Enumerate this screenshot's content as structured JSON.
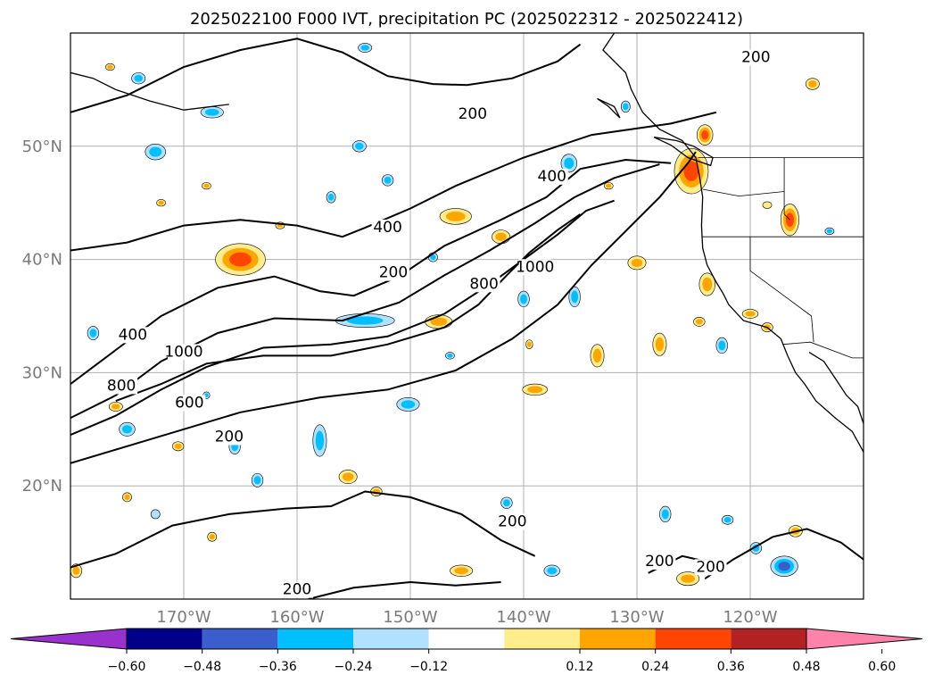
{
  "title": "2025022100 F000 IVT, precipitation PC (2025022312 - 2025022412)",
  "map": {
    "lon_range": [
      -180,
      -110
    ],
    "lat_range": [
      10,
      60
    ],
    "lat_ticks": [
      {
        "value": 20,
        "label": "20°N"
      },
      {
        "value": 30,
        "label": "30°N"
      },
      {
        "value": 40,
        "label": "40°N"
      },
      {
        "value": 50,
        "label": "50°N"
      }
    ],
    "lon_ticks": [
      {
        "value": -170,
        "label": "170°W"
      },
      {
        "value": -160,
        "label": "160°W"
      },
      {
        "value": -150,
        "label": "150°W"
      },
      {
        "value": -140,
        "label": "140°W"
      },
      {
        "value": -130,
        "label": "130°W"
      },
      {
        "value": -120,
        "label": "120°W"
      }
    ],
    "grid": true,
    "land_color": "#ffffff",
    "gridline_color": "#b0b0b0"
  },
  "chart_data": {
    "type": "heatmap",
    "title": "2025022100 F000 IVT, precipitation PC (2025022312 - 2025022412)",
    "ivt_contour_levels": [
      200,
      400,
      600,
      800,
      1000
    ],
    "ivt_contour_labels": [
      {
        "text": "200",
        "lon": -144.5,
        "lat": 52.5
      },
      {
        "text": "200",
        "lon": -119.5,
        "lat": 57.5
      },
      {
        "text": "400",
        "lon": -137.5,
        "lat": 47.0
      },
      {
        "text": "400",
        "lon": -152.0,
        "lat": 42.5
      },
      {
        "text": "200",
        "lon": -151.5,
        "lat": 38.5
      },
      {
        "text": "800",
        "lon": -143.5,
        "lat": 37.5
      },
      {
        "text": "1000",
        "lon": -139.0,
        "lat": 39.0
      },
      {
        "text": "400",
        "lon": -174.5,
        "lat": 33.0
      },
      {
        "text": "1000",
        "lon": -170.0,
        "lat": 31.5
      },
      {
        "text": "800",
        "lon": -175.5,
        "lat": 28.5
      },
      {
        "text": "600",
        "lon": -169.5,
        "lat": 27.0
      },
      {
        "text": "200",
        "lon": -166.0,
        "lat": 24.0
      },
      {
        "text": "200",
        "lon": -141.0,
        "lat": 16.5
      },
      {
        "text": "200",
        "lon": -128.0,
        "lat": 13.0
      },
      {
        "text": "200",
        "lon": -123.5,
        "lat": 12.5
      },
      {
        "text": "200",
        "lon": -160.0,
        "lat": 10.5
      }
    ],
    "colorbar": {
      "ticks": [
        "−0.60",
        "−0.48",
        "−0.36",
        "−0.24",
        "−0.12",
        "0.12",
        "0.24",
        "0.36",
        "0.48",
        "0.60"
      ],
      "boundaries": [
        -0.72,
        -0.6,
        -0.48,
        -0.36,
        -0.24,
        -0.12,
        0.12,
        0.24,
        0.36,
        0.48,
        0.6,
        0.72
      ],
      "colors": [
        "#9932cc",
        "#00008b",
        "#3a5fcd",
        "#00bfff",
        "#b0e2ff",
        "#ffffff",
        "#ffec8b",
        "#ffa500",
        "#ff4500",
        "#b22222",
        "#ff82ab"
      ],
      "extend": "both"
    },
    "pc_blobs": [
      {
        "lon": -165.0,
        "lat": 40.0,
        "rx": 2.2,
        "ry": 1.4,
        "v": 0.45
      },
      {
        "lon": -154.0,
        "lat": 34.6,
        "rx": 2.6,
        "ry": 0.6,
        "v": -0.4
      },
      {
        "lon": -125.2,
        "lat": 47.8,
        "rx": 1.5,
        "ry": 2.0,
        "v": 0.5
      },
      {
        "lon": -124.0,
        "lat": 51.0,
        "rx": 0.7,
        "ry": 0.9,
        "v": 0.42
      },
      {
        "lon": -146.0,
        "lat": 43.8,
        "rx": 1.4,
        "ry": 0.7,
        "v": 0.38
      },
      {
        "lon": -142.0,
        "lat": 42.0,
        "rx": 0.8,
        "ry": 0.6,
        "v": 0.36
      },
      {
        "lon": -147.5,
        "lat": 34.5,
        "rx": 1.2,
        "ry": 0.6,
        "v": 0.38
      },
      {
        "lon": -116.5,
        "lat": 43.5,
        "rx": 0.8,
        "ry": 1.4,
        "v": 0.42
      },
      {
        "lon": -130.0,
        "lat": 39.7,
        "rx": 0.8,
        "ry": 0.6,
        "v": 0.38
      },
      {
        "lon": -123.8,
        "lat": 37.8,
        "rx": 0.7,
        "ry": 1.0,
        "v": 0.38
      },
      {
        "lon": -128.0,
        "lat": 32.5,
        "rx": 0.6,
        "ry": 1.0,
        "v": 0.4
      },
      {
        "lon": -133.5,
        "lat": 31.5,
        "rx": 0.6,
        "ry": 1.0,
        "v": 0.38
      },
      {
        "lon": -139.0,
        "lat": 28.5,
        "rx": 1.1,
        "ry": 0.5,
        "v": 0.36
      },
      {
        "lon": -172.5,
        "lat": 49.5,
        "rx": 0.9,
        "ry": 0.7,
        "v": -0.4
      },
      {
        "lon": -165.5,
        "lat": 23.5,
        "rx": 0.5,
        "ry": 0.7,
        "v": -0.38
      },
      {
        "lon": -168.0,
        "lat": 46.5,
        "rx": 0.4,
        "ry": 0.3,
        "v": 0.3
      },
      {
        "lon": -172.0,
        "lat": 45.0,
        "rx": 0.4,
        "ry": 0.3,
        "v": 0.3
      },
      {
        "lon": -157.0,
        "lat": 45.5,
        "rx": 0.4,
        "ry": 0.5,
        "v": -0.4
      },
      {
        "lon": -174.0,
        "lat": 56.0,
        "rx": 0.6,
        "ry": 0.5,
        "v": -0.36
      },
      {
        "lon": -167.5,
        "lat": 53.0,
        "rx": 1.0,
        "ry": 0.5,
        "v": -0.36
      },
      {
        "lon": -136.0,
        "lat": 48.5,
        "rx": 0.7,
        "ry": 0.8,
        "v": -0.36
      },
      {
        "lon": -131.0,
        "lat": 53.5,
        "rx": 0.4,
        "ry": 0.5,
        "v": -0.3
      },
      {
        "lon": -140.0,
        "lat": 36.5,
        "rx": 0.5,
        "ry": 0.7,
        "v": -0.36
      },
      {
        "lon": -135.5,
        "lat": 36.7,
        "rx": 0.5,
        "ry": 0.9,
        "v": -0.38
      },
      {
        "lon": -152.0,
        "lat": 47.0,
        "rx": 0.5,
        "ry": 0.5,
        "v": -0.36
      },
      {
        "lon": -150.2,
        "lat": 27.2,
        "rx": 1.0,
        "ry": 0.6,
        "v": -0.38
      },
      {
        "lon": -148.0,
        "lat": 40.2,
        "rx": 0.4,
        "ry": 0.4,
        "v": -0.32
      },
      {
        "lon": -158.0,
        "lat": 24.0,
        "rx": 0.6,
        "ry": 1.4,
        "v": -0.4
      },
      {
        "lon": -175.0,
        "lat": 25.0,
        "rx": 0.7,
        "ry": 0.6,
        "v": -0.4
      },
      {
        "lon": -174.5,
        "lat": 29.0,
        "rx": 0.4,
        "ry": 0.4,
        "v": 0.3
      },
      {
        "lon": -155.5,
        "lat": 20.8,
        "rx": 0.8,
        "ry": 0.6,
        "v": 0.4
      },
      {
        "lon": -153.0,
        "lat": 19.5,
        "rx": 0.5,
        "ry": 0.4,
        "v": 0.36
      },
      {
        "lon": -141.5,
        "lat": 18.5,
        "rx": 0.5,
        "ry": 0.5,
        "v": -0.38
      },
      {
        "lon": -137.5,
        "lat": 12.5,
        "rx": 0.7,
        "ry": 0.5,
        "v": -0.36
      },
      {
        "lon": -145.5,
        "lat": 12.5,
        "rx": 1.0,
        "ry": 0.5,
        "v": 0.32
      },
      {
        "lon": -117.0,
        "lat": 12.9,
        "rx": 1.2,
        "ry": 0.9,
        "v": -0.45
      },
      {
        "lon": -125.5,
        "lat": 11.8,
        "rx": 1.0,
        "ry": 0.6,
        "v": 0.36
      },
      {
        "lon": -120.0,
        "lat": 35.2,
        "rx": 0.7,
        "ry": 0.4,
        "v": 0.36
      },
      {
        "lon": -122.5,
        "lat": 32.4,
        "rx": 0.5,
        "ry": 0.7,
        "v": -0.36
      },
      {
        "lon": -127.5,
        "lat": 17.5,
        "rx": 0.5,
        "ry": 0.7,
        "v": -0.38
      },
      {
        "lon": -116.0,
        "lat": 16.0,
        "rx": 0.6,
        "ry": 0.5,
        "v": 0.38
      },
      {
        "lon": -179.5,
        "lat": 12.5,
        "rx": 0.5,
        "ry": 0.6,
        "v": 0.38
      },
      {
        "lon": -178.0,
        "lat": 33.5,
        "rx": 0.5,
        "ry": 0.6,
        "v": -0.3
      },
      {
        "lon": -163.5,
        "lat": 20.5,
        "rx": 0.5,
        "ry": 0.6,
        "v": -0.3
      },
      {
        "lon": -176.0,
        "lat": 27.0,
        "rx": 0.6,
        "ry": 0.4,
        "v": 0.34
      },
      {
        "lon": -139.5,
        "lat": 32.5,
        "rx": 0.3,
        "ry": 0.4,
        "v": 0.3
      },
      {
        "lon": -167.5,
        "lat": 15.5,
        "rx": 0.4,
        "ry": 0.4,
        "v": 0.32
      },
      {
        "lon": -170.5,
        "lat": 23.5,
        "rx": 0.5,
        "ry": 0.4,
        "v": 0.32
      },
      {
        "lon": -124.5,
        "lat": 34.5,
        "rx": 0.5,
        "ry": 0.4,
        "v": 0.34
      },
      {
        "lon": -118.5,
        "lat": 34.0,
        "rx": 0.5,
        "ry": 0.4,
        "v": 0.36
      },
      {
        "lon": -146.5,
        "lat": 31.5,
        "rx": 0.4,
        "ry": 0.3,
        "v": -0.3
      },
      {
        "lon": -114.5,
        "lat": 55.5,
        "rx": 0.6,
        "ry": 0.5,
        "v": 0.36
      },
      {
        "lon": -132.5,
        "lat": 46.5,
        "rx": 0.4,
        "ry": 0.3,
        "v": 0.3
      },
      {
        "lon": -154.5,
        "lat": 50.0,
        "rx": 0.6,
        "ry": 0.5,
        "v": -0.38
      },
      {
        "lon": -118.5,
        "lat": 44.8,
        "rx": 0.4,
        "ry": 0.3,
        "v": 0.28
      },
      {
        "lon": -113.0,
        "lat": 42.5,
        "rx": 0.4,
        "ry": 0.3,
        "v": -0.3
      },
      {
        "lon": -176.5,
        "lat": 57.0,
        "rx": 0.4,
        "ry": 0.3,
        "v": 0.3
      },
      {
        "lon": -154.0,
        "lat": 58.7,
        "rx": 0.6,
        "ry": 0.4,
        "v": -0.3
      },
      {
        "lon": -161.5,
        "lat": 43.0,
        "rx": 0.4,
        "ry": 0.3,
        "v": 0.3
      },
      {
        "lon": -175.0,
        "lat": 19.0,
        "rx": 0.4,
        "ry": 0.4,
        "v": 0.3
      },
      {
        "lon": -172.5,
        "lat": 17.5,
        "rx": 0.4,
        "ry": 0.4,
        "v": -0.28
      },
      {
        "lon": -168.0,
        "lat": 28.0,
        "rx": 0.3,
        "ry": 0.3,
        "v": -0.3
      },
      {
        "lon": -122.0,
        "lat": 17.0,
        "rx": 0.5,
        "ry": 0.4,
        "v": -0.3
      },
      {
        "lon": -119.5,
        "lat": 14.5,
        "rx": 0.5,
        "ry": 0.5,
        "v": -0.34
      }
    ]
  }
}
